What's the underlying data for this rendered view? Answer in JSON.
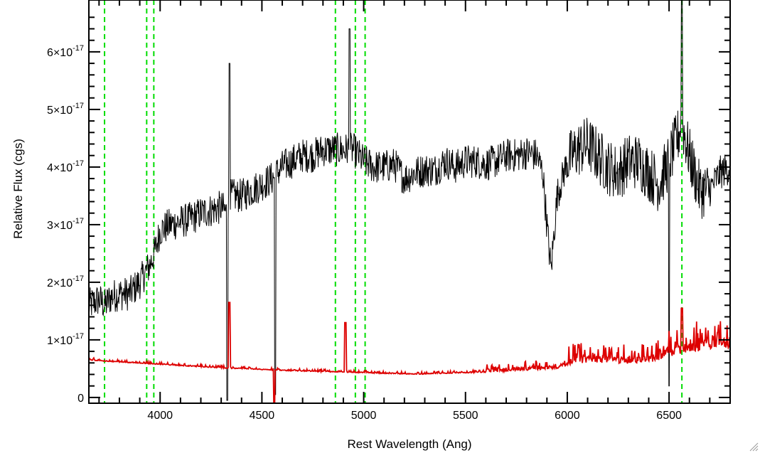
{
  "chart_data": {
    "type": "line",
    "title": "",
    "xlabel": "Rest Wavelength (Ang)",
    "ylabel": "Relative Flux (cgs)",
    "xlim": [
      3650,
      6800
    ],
    "ylim": [
      -1e-18,
      6.9e-17
    ],
    "x_ticks": [
      4000,
      4500,
      5000,
      5500,
      6000,
      6500
    ],
    "y_ticks": [
      {
        "value": 0,
        "label": "0"
      },
      {
        "value": 1e-17,
        "mantissa": "1",
        "exponent": "-17"
      },
      {
        "value": 2e-17,
        "mantissa": "2",
        "exponent": "-17"
      },
      {
        "value": 3e-17,
        "mantissa": "3",
        "exponent": "-17"
      },
      {
        "value": 4e-17,
        "mantissa": "4",
        "exponent": "-17"
      },
      {
        "value": 5e-17,
        "mantissa": "5",
        "exponent": "-17"
      },
      {
        "value": 6e-17,
        "mantissa": "6",
        "exponent": "-17"
      }
    ],
    "vlines": {
      "color": "#00dd00",
      "x": [
        3727,
        3934,
        3969,
        4861,
        4959,
        5007,
        6563
      ]
    },
    "series": [
      {
        "color": "#000000",
        "x": [
          3650,
          3700,
          3730,
          3760,
          3800,
          3850,
          3900,
          3950,
          3980,
          4000,
          4050,
          4100,
          4150,
          4200,
          4250,
          4300,
          4330,
          4345,
          4400,
          4450,
          4500,
          4550,
          4600,
          4650,
          4700,
          4750,
          4800,
          4850,
          4900,
          4950,
          5000,
          5050,
          5100,
          5150,
          5200,
          5250,
          5300,
          5350,
          5400,
          5450,
          5500,
          5550,
          5600,
          5650,
          5700,
          5750,
          5800,
          5850,
          5880,
          5900,
          5920,
          5950,
          6000,
          6050,
          6100,
          6150,
          6200,
          6250,
          6300,
          6350,
          6400,
          6450,
          6500,
          6550,
          6560,
          6600,
          6650,
          6700,
          6750,
          6800
        ],
        "y": [
          1.6e-17,
          1.7e-17,
          1.6e-17,
          1.75e-17,
          1.8e-17,
          1.8e-17,
          2e-17,
          2.3e-17,
          2.6e-17,
          2.9e-17,
          3e-17,
          3.05e-17,
          3.1e-17,
          3.2e-17,
          3.25e-17,
          3.3e-17,
          3.2e-17,
          3.5e-17,
          3.5e-17,
          3.6e-17,
          3.7e-17,
          3.8e-17,
          4e-17,
          4.1e-17,
          4.2e-17,
          4.2e-17,
          4.3e-17,
          4.3e-17,
          4.3e-17,
          4.3e-17,
          4.1e-17,
          4e-17,
          4e-17,
          4.05e-17,
          3.8e-17,
          3.9e-17,
          3.95e-17,
          3.95e-17,
          4.1e-17,
          4e-17,
          4.1e-17,
          4.1e-17,
          4.05e-17,
          4.1e-17,
          4.2e-17,
          4.2e-17,
          4.25e-17,
          4.2e-17,
          3.9e-17,
          3e-17,
          2.2e-17,
          3.5e-17,
          4.1e-17,
          4.3e-17,
          4.4e-17,
          4.2e-17,
          4e-17,
          3.9e-17,
          4.1e-17,
          4.1e-17,
          3.9e-17,
          3.7e-17,
          4.1e-17,
          4.6e-17,
          4.8e-17,
          4.2e-17,
          3.6e-17,
          3.6e-17,
          3.9e-17,
          4e-17
        ]
      },
      {
        "color": "#dd0000",
        "x": [
          3650,
          3750,
          3850,
          3950,
          4050,
          4150,
          4250,
          4350,
          4450,
          4550,
          4650,
          4750,
          4850,
          4950,
          5050,
          5150,
          5250,
          5350,
          5450,
          5550,
          5650,
          5750,
          5850,
          5950,
          6000,
          6100,
          6200,
          6300,
          6400,
          6450,
          6500,
          6550,
          6600,
          6650,
          6700,
          6750,
          6800
        ],
        "y": [
          6.5e-18,
          6.2e-18,
          6e-18,
          5.8e-18,
          5.6e-18,
          5.4e-18,
          5.2e-18,
          5e-18,
          4.9e-18,
          4.7e-18,
          4.6e-18,
          4.5e-18,
          4.4e-18,
          4.3e-18,
          4.2e-18,
          4.1e-18,
          4e-18,
          4.1e-18,
          4.2e-18,
          4.3e-18,
          4.4e-18,
          4.6e-18,
          4.8e-18,
          5e-18,
          5.6e-18,
          6e-18,
          6e-18,
          5.8e-18,
          6e-18,
          6.5e-18,
          7e-18,
          7.5e-18,
          7.8e-18,
          8e-18,
          8.4e-18,
          8.6e-18,
          8.5e-18
        ]
      }
    ],
    "grid": false,
    "legend": "none"
  }
}
